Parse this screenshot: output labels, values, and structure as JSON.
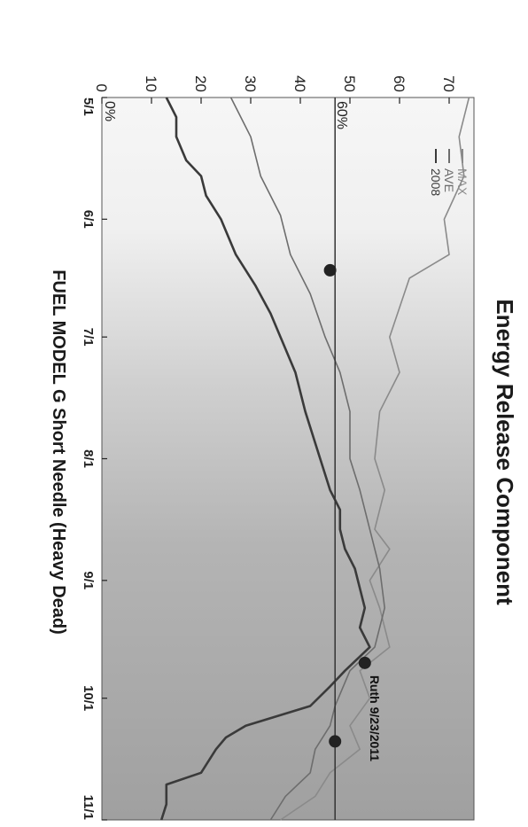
{
  "chart_data": {
    "type": "line",
    "title": "Energy Release Component",
    "xlabel": "FUEL MODEL G Short Needle (Heavy Dead)",
    "ylabel": "",
    "ylim": [
      0,
      75
    ],
    "yticks": [
      0,
      10,
      20,
      30,
      40,
      50,
      60,
      70
    ],
    "xticks": [
      "5/1",
      "6/1",
      "7/1",
      "8/1",
      "9/1",
      "10/1",
      "11/1"
    ],
    "grid": false,
    "legend_position": "top-left",
    "series": [
      {
        "name": "MAX",
        "color": "#8a8a8a",
        "values": [
          [
            0,
            74
          ],
          [
            10,
            72
          ],
          [
            20,
            73
          ],
          [
            31,
            69
          ],
          [
            40,
            70
          ],
          [
            46,
            62
          ],
          [
            61,
            58
          ],
          [
            70,
            60
          ],
          [
            80,
            56
          ],
          [
            92,
            55
          ],
          [
            100,
            57
          ],
          [
            110,
            55
          ],
          [
            115,
            58
          ],
          [
            123,
            54
          ],
          [
            130,
            56
          ],
          [
            140,
            58
          ],
          [
            146,
            52
          ],
          [
            153,
            54
          ],
          [
            160,
            50
          ],
          [
            166,
            52
          ],
          [
            172,
            46
          ],
          [
            178,
            43
          ],
          [
            184,
            36
          ]
        ]
      },
      {
        "name": "AVE",
        "color": "#6d6d6d",
        "values": [
          [
            0,
            26
          ],
          [
            10,
            30
          ],
          [
            20,
            32
          ],
          [
            30,
            36
          ],
          [
            40,
            38
          ],
          [
            50,
            42
          ],
          [
            61,
            45
          ],
          [
            70,
            48
          ],
          [
            80,
            50
          ],
          [
            92,
            50
          ],
          [
            100,
            52
          ],
          [
            110,
            54
          ],
          [
            120,
            56
          ],
          [
            130,
            57
          ],
          [
            140,
            55
          ],
          [
            146,
            50
          ],
          [
            155,
            47
          ],
          [
            160,
            46
          ],
          [
            166,
            43
          ],
          [
            172,
            42
          ],
          [
            178,
            37
          ],
          [
            184,
            34
          ]
        ]
      },
      {
        "name": "2008",
        "color": "#3a3a3a",
        "values": [
          [
            0,
            13
          ],
          [
            5,
            15
          ],
          [
            10,
            15
          ],
          [
            16,
            17
          ],
          [
            20,
            20
          ],
          [
            25,
            21
          ],
          [
            31,
            24
          ],
          [
            40,
            27
          ],
          [
            48,
            31
          ],
          [
            55,
            34
          ],
          [
            61,
            36
          ],
          [
            70,
            39
          ],
          [
            80,
            41
          ],
          [
            92,
            44
          ],
          [
            100,
            46
          ],
          [
            105,
            48
          ],
          [
            110,
            48
          ],
          [
            115,
            49
          ],
          [
            120,
            51
          ],
          [
            125,
            52
          ],
          [
            130,
            53
          ],
          [
            135,
            52
          ],
          [
            140,
            54
          ],
          [
            146,
            49
          ],
          [
            150,
            46
          ],
          [
            155,
            42
          ],
          [
            160,
            29
          ],
          [
            163,
            25
          ],
          [
            166,
            23
          ],
          [
            172,
            20
          ],
          [
            175,
            13
          ],
          [
            180,
            13
          ],
          [
            184,
            12
          ]
        ]
      }
    ],
    "reference_line": {
      "y": 47,
      "label": "60%"
    },
    "baseline_label": "0%",
    "points": [
      {
        "x": 44,
        "y": 46
      },
      {
        "x": 144,
        "y": 53,
        "label": "Ruth 9/23/2011"
      },
      {
        "x": 164,
        "y": 47
      }
    ],
    "colors": {
      "plot_background": "#a6a6a6",
      "band_light": "#ececec",
      "reference_line": "#333333",
      "points": "#222222"
    }
  }
}
